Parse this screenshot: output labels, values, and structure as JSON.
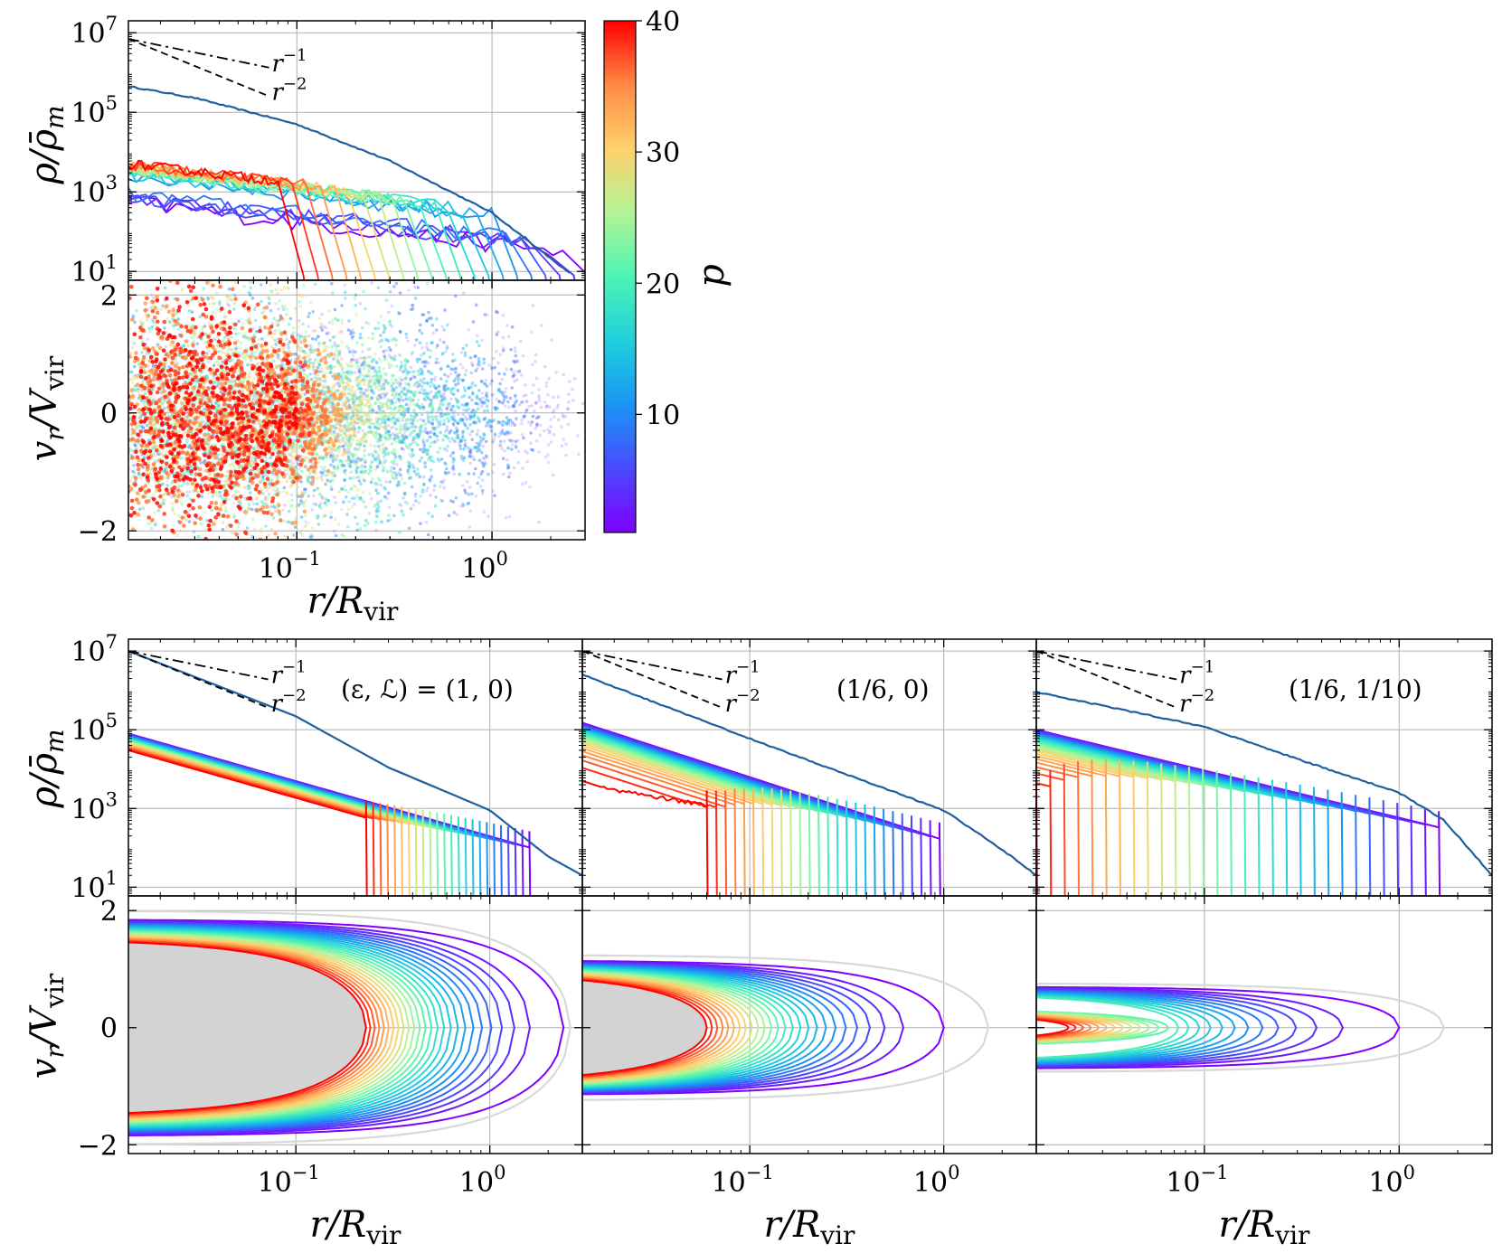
{
  "chart_data": [
    {
      "id": "top-density",
      "type": "line",
      "ylabel": "ρ/ρ̄_m",
      "yscale": "log",
      "xscale": "log",
      "ylim": [
        6,
        20000000
      ],
      "yticks": [
        {
          "v": 10,
          "base": "10",
          "exp": "1"
        },
        {
          "v": 1000,
          "base": "10",
          "exp": "3"
        },
        {
          "v": 100000,
          "base": "10",
          "exp": "5"
        },
        {
          "v": 10000000,
          "base": "10",
          "exp": "7"
        }
      ],
      "grid": true,
      "guides": [
        {
          "label_base": "r",
          "label_exp": "−1"
        },
        {
          "label_base": "r",
          "label_exp": "−2"
        }
      ],
      "total_profile": [
        [
          0.0137,
          450000
        ],
        [
          0.03,
          230000
        ],
        [
          0.1,
          50000
        ],
        [
          0.3,
          6000
        ],
        [
          1.0,
          300
        ],
        [
          2.5,
          9
        ]
      ],
      "snapshots": {
        "p_min": 1,
        "p_max": 40,
        "count": 21,
        "inner_x": 0.0137,
        "inner_y_range": [
          800,
          5000
        ],
        "outer_x_range": [
          2.3,
          0.08
        ],
        "noisy": true
      }
    },
    {
      "id": "top-phase",
      "type": "scatter",
      "ylabel": "v_r/V_vir",
      "xlabel": "r/R_vir",
      "xscale": "log",
      "xlim": [
        0.0137,
        3.0
      ],
      "ylim": [
        -2.15,
        2.25
      ],
      "xticks": [
        {
          "v": 0.1,
          "base": "10",
          "exp": "−1"
        },
        {
          "v": 1.0,
          "base": "10",
          "exp": "0"
        }
      ],
      "yticks": [
        {
          "v": -2,
          "label": "−2"
        },
        {
          "v": 0,
          "label": "0"
        },
        {
          "v": 2,
          "label": "2"
        }
      ],
      "grid": true,
      "point_density": "dense"
    },
    {
      "id": "colorbar",
      "type": "colorbar",
      "label": "p",
      "range": [
        1,
        40
      ],
      "ticks": [
        10,
        20,
        30,
        40
      ],
      "colormap": "rainbow"
    },
    {
      "id": "panel-a",
      "type": "line",
      "annotation": "(ε, ℒ) = (1, 0)",
      "xscale": "log",
      "yscale": "log",
      "xlabel": "r/R_vir",
      "ylabel_density": "ρ/ρ̄_m",
      "ylabel_velocity": "v_r/V_vir",
      "density_total": [
        [
          0.0137,
          10000000
        ],
        [
          0.1,
          220000
        ],
        [
          0.3,
          11000
        ],
        [
          1.0,
          900
        ],
        [
          2.0,
          60
        ],
        [
          3.0,
          20
        ]
      ],
      "density_snapshots": {
        "count": 24,
        "inner_amp_range": [
          30000,
          80000
        ],
        "slope": -2,
        "jump_x_range": [
          0.23,
          1.6
        ],
        "max_spike": 30000
      },
      "phase_curves": {
        "count": 26,
        "r_turn_range": [
          0.23,
          2.4
        ],
        "vmax": 1.85,
        "inner_fill": "#d3d3d3",
        "envelope_r": 2.6
      },
      "shock_radius": 0.23
    },
    {
      "id": "panel-b",
      "type": "line",
      "annotation": "(1/6, 0)",
      "xscale": "log",
      "yscale": "log",
      "xlabel": "r/R_vir",
      "density_total": [
        [
          0.0137,
          2500000
        ],
        [
          0.1,
          60000
        ],
        [
          0.3,
          8000
        ],
        [
          1.0,
          900
        ],
        [
          2.0,
          90
        ],
        [
          3.0,
          20
        ]
      ],
      "density_snapshots": {
        "count": 26,
        "inner_amp_range": [
          5000,
          150000
        ],
        "slope": -1.6,
        "jump_x_range": [
          0.06,
          0.95
        ]
      },
      "phase_curves": {
        "count": 26,
        "r_turn_range": [
          0.06,
          1.0
        ],
        "vmax": 1.15,
        "inner_fill": "#d3d3d3",
        "envelope_r": 1.7
      },
      "shock_radius": 0.06
    },
    {
      "id": "panel-c",
      "type": "line",
      "annotation": "(1/6, 1/10)",
      "xscale": "log",
      "yscale": "log",
      "xlabel": "r/R_vir",
      "density_total": [
        [
          0.0137,
          900000
        ],
        [
          0.1,
          120000
        ],
        [
          0.3,
          18000
        ],
        [
          1.0,
          2500
        ],
        [
          1.7,
          500
        ],
        [
          3.0,
          20
        ]
      ],
      "density_snapshots": {
        "count": 30,
        "inner_amp_range": [
          1000,
          100000
        ],
        "slope": -1.0,
        "jump_x_range": [
          0.0137,
          1.6
        ]
      },
      "phase_curves": {
        "count": 26,
        "r_turn_range": [
          0.02,
          1.0
        ],
        "vmax": 0.7,
        "inner_fill": null,
        "envelope_r": 1.7
      },
      "shock_radius": 0.05
    }
  ]
}
